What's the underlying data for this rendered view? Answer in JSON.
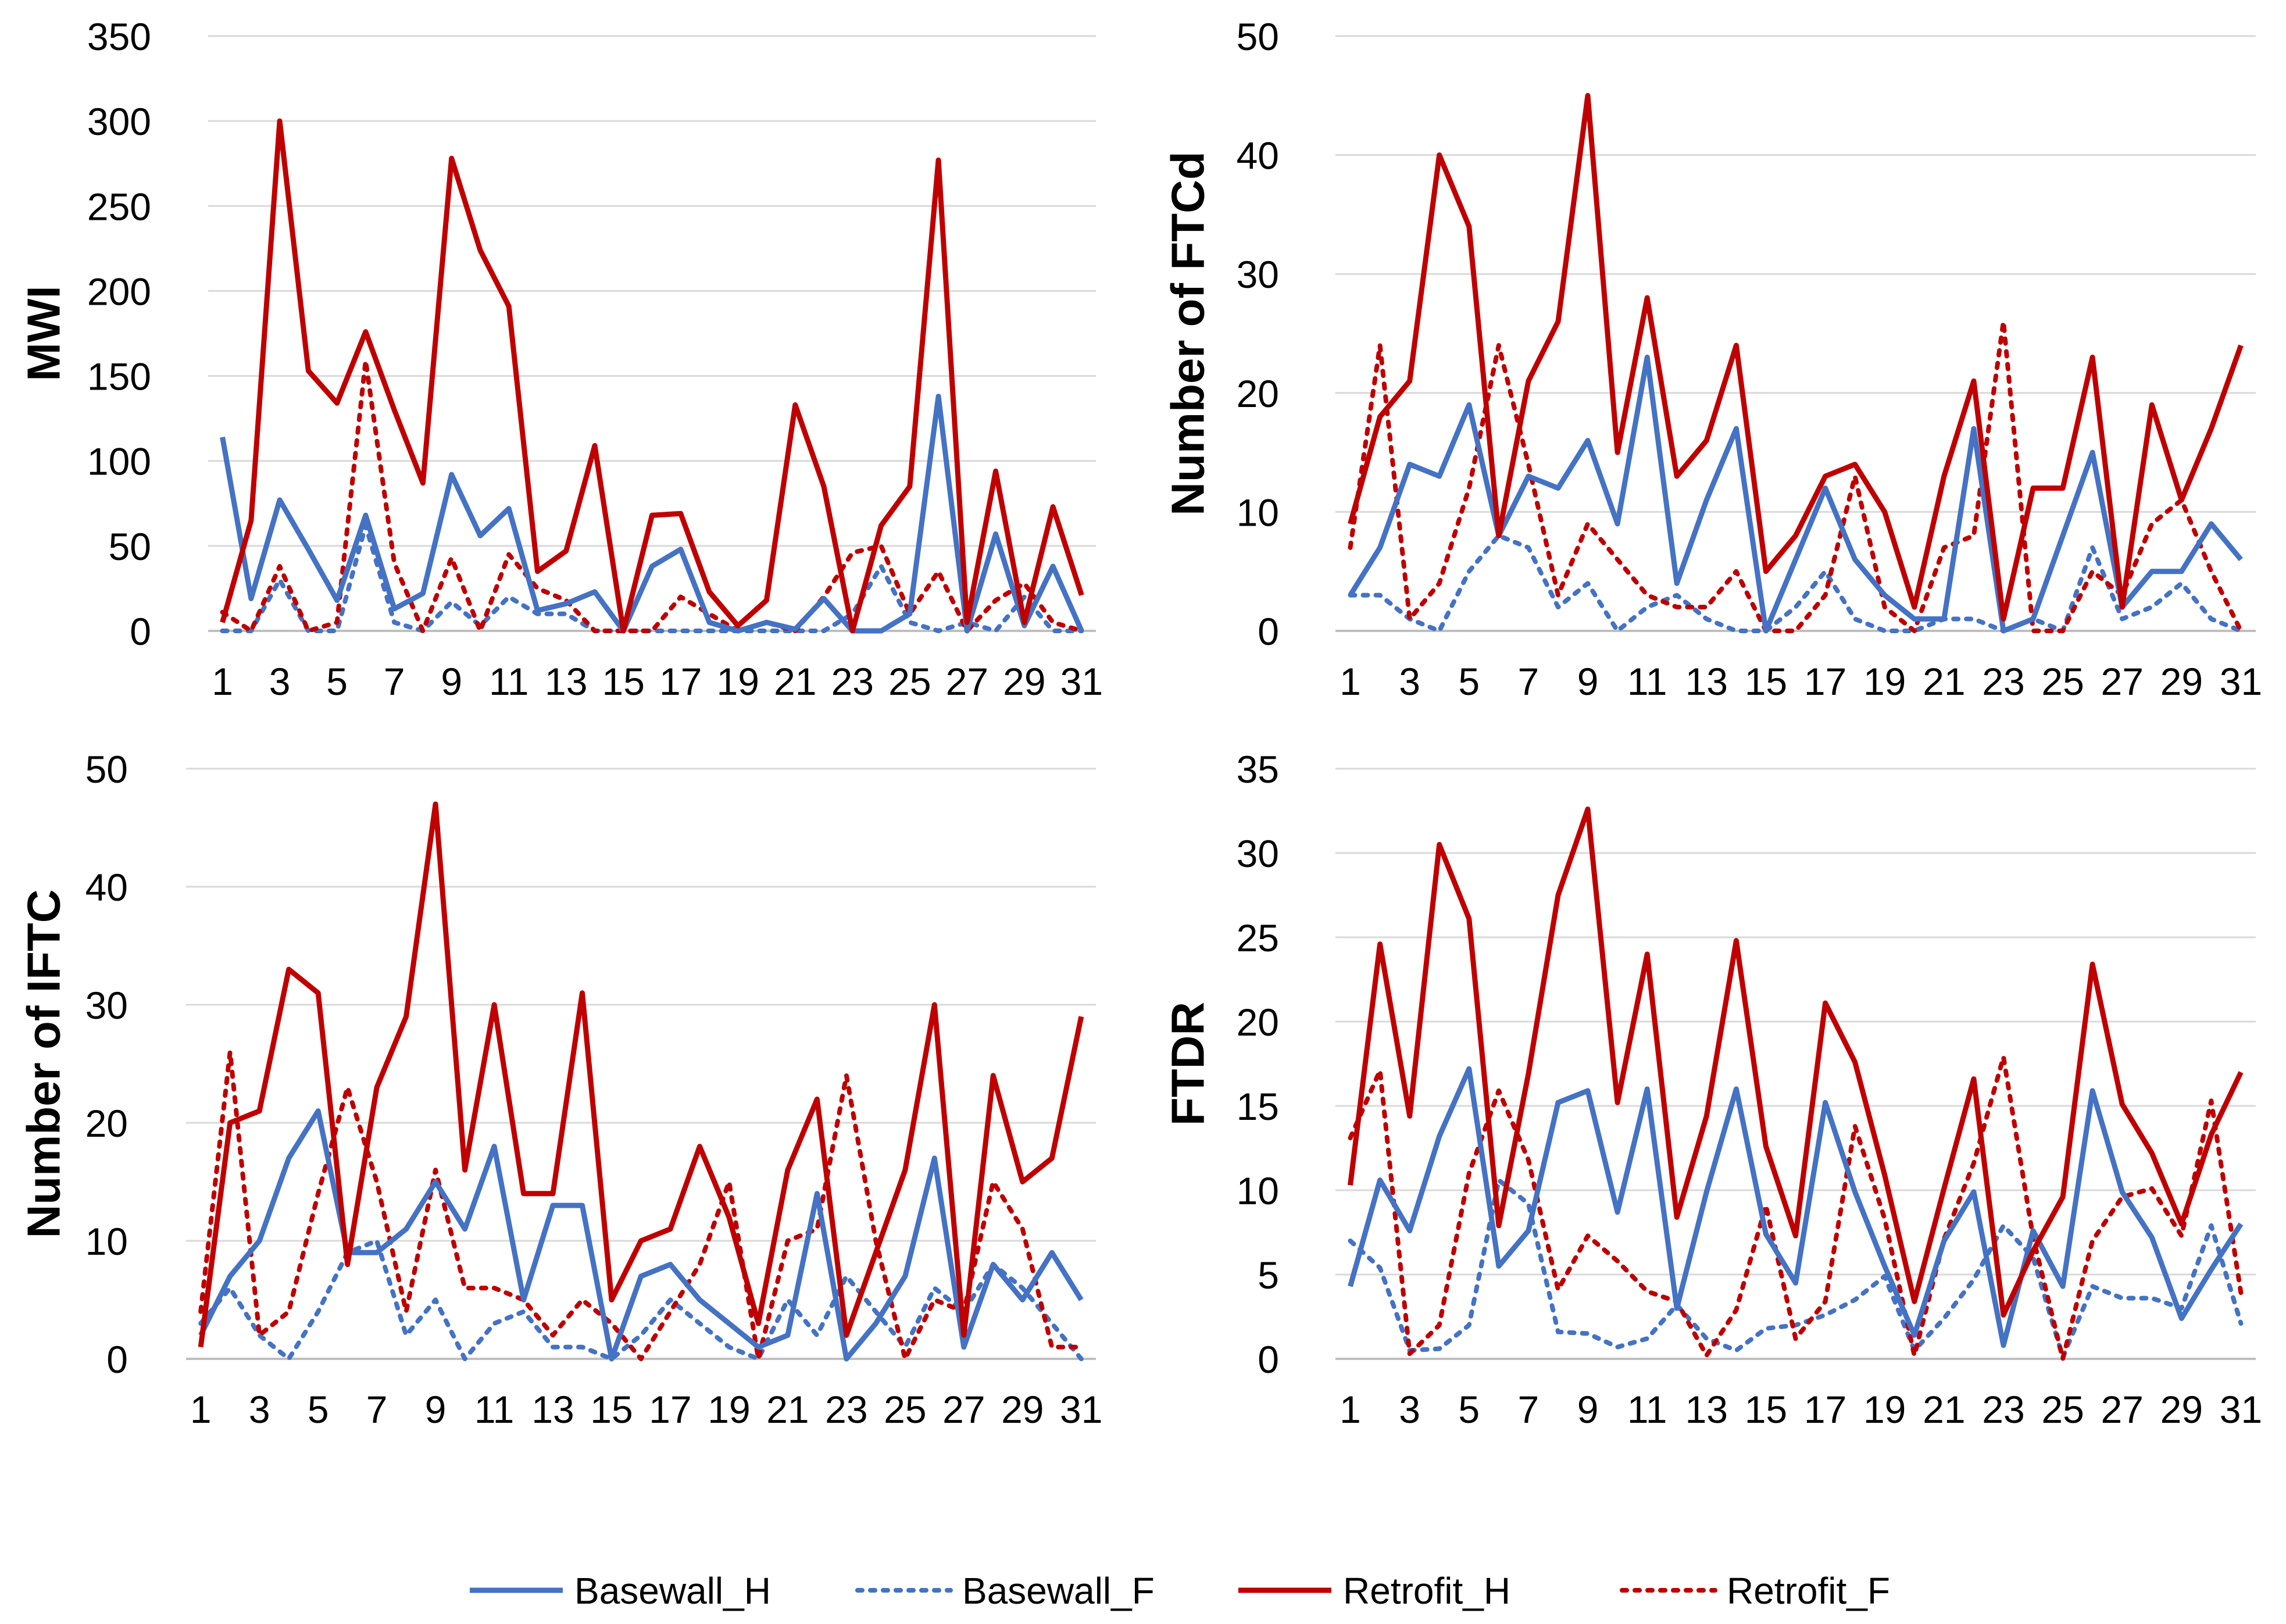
{
  "colors": {
    "basewall": "#4472C4",
    "retrofit": "#C00000",
    "grid": "#D9D9D9",
    "axis": "#BFBFBF",
    "text": "#000000"
  },
  "legend": [
    {
      "name": "Basewall_H",
      "color": "#4472C4",
      "style": "solid"
    },
    {
      "name": "Basewall_F",
      "color": "#4472C4",
      "style": "dotted"
    },
    {
      "name": "Retrofit_H",
      "color": "#C00000",
      "style": "solid"
    },
    {
      "name": "Retrofit_F",
      "color": "#C00000",
      "style": "dotted"
    }
  ],
  "chart_data": [
    {
      "type": "line",
      "ylabel": "MWI",
      "ylim": [
        0,
        350
      ],
      "yticks": [
        0,
        50,
        100,
        150,
        200,
        250,
        300,
        350
      ],
      "x": [
        1,
        2,
        3,
        4,
        5,
        6,
        7,
        8,
        9,
        10,
        11,
        12,
        13,
        14,
        15,
        16,
        17,
        18,
        19,
        20,
        21,
        22,
        23,
        24,
        25,
        26,
        27,
        28,
        29,
        30,
        31
      ],
      "xticklabels": [
        "1",
        "3",
        "5",
        "7",
        "9",
        "11",
        "13",
        "15",
        "17",
        "19",
        "21",
        "23",
        "25",
        "27",
        "29",
        "31"
      ],
      "series": [
        {
          "name": "Basewall_H",
          "values": [
            114,
            19,
            77,
            48,
            18,
            68,
            13,
            22,
            92,
            56,
            72,
            12,
            16,
            23,
            0,
            38,
            48,
            5,
            0,
            5,
            1,
            19,
            0,
            0,
            10,
            138,
            0,
            57,
            3,
            38,
            0
          ]
        },
        {
          "name": "Basewall_F",
          "values": [
            0,
            0,
            30,
            0,
            0,
            62,
            5,
            0,
            17,
            3,
            20,
            10,
            10,
            0,
            0,
            0,
            0,
            0,
            0,
            0,
            0,
            0,
            10,
            38,
            5,
            0,
            5,
            0,
            20,
            0,
            0
          ]
        },
        {
          "name": "Retrofit_H",
          "values": [
            5,
            65,
            300,
            153,
            134,
            176,
            130,
            87,
            278,
            224,
            191,
            35,
            47,
            109,
            0,
            68,
            69,
            23,
            3,
            18,
            133,
            85,
            0,
            62,
            85,
            277,
            5,
            94,
            5,
            73,
            21
          ]
        },
        {
          "name": "Retrofit_F",
          "values": [
            11,
            0,
            38,
            0,
            5,
            159,
            40,
            0,
            43,
            0,
            45,
            25,
            18,
            0,
            0,
            0,
            20,
            10,
            0,
            5,
            0,
            20,
            46,
            50,
            10,
            35,
            0,
            18,
            28,
            5,
            0
          ]
        }
      ]
    },
    {
      "type": "line",
      "ylabel": "Number of FTCd",
      "ylim": [
        0,
        50
      ],
      "yticks": [
        0,
        10,
        20,
        30,
        40,
        50
      ],
      "x": [
        1,
        2,
        3,
        4,
        5,
        6,
        7,
        8,
        9,
        10,
        11,
        12,
        13,
        14,
        15,
        16,
        17,
        18,
        19,
        20,
        21,
        22,
        23,
        24,
        25,
        26,
        27,
        28,
        29,
        30,
        31
      ],
      "xticklabels": [
        "1",
        "3",
        "5",
        "7",
        "9",
        "11",
        "13",
        "15",
        "17",
        "19",
        "21",
        "23",
        "25",
        "27",
        "29",
        "31"
      ],
      "series": [
        {
          "name": "Basewall_H",
          "values": [
            3,
            7,
            14,
            13,
            19,
            8,
            13,
            12,
            16,
            9,
            23,
            4,
            11,
            17,
            0,
            6,
            12,
            6,
            3,
            1,
            1,
            17,
            0,
            1,
            8,
            15,
            2,
            5,
            5,
            9,
            6
          ]
        },
        {
          "name": "Basewall_F",
          "values": [
            3,
            3,
            1,
            0,
            5,
            8,
            7,
            2,
            4,
            0,
            2,
            3,
            1,
            0,
            0,
            2,
            5,
            1,
            0,
            0,
            1,
            1,
            0,
            1,
            0,
            7,
            1,
            2,
            4,
            1,
            0
          ]
        },
        {
          "name": "Retrofit_H",
          "values": [
            9,
            18,
            21,
            40,
            34,
            8,
            21,
            26,
            45,
            15,
            28,
            13,
            16,
            24,
            5,
            8,
            13,
            14,
            10,
            2,
            13,
            21,
            1,
            12,
            12,
            23,
            2,
            19,
            11,
            17,
            24
          ]
        },
        {
          "name": "Retrofit_F",
          "values": [
            7,
            24,
            1,
            4,
            12,
            24,
            14,
            3,
            9,
            6,
            3,
            2,
            2,
            5,
            0,
            0,
            3,
            13,
            2,
            0,
            7,
            8,
            26,
            0,
            0,
            5,
            3,
            9,
            11,
            5,
            0
          ]
        }
      ]
    },
    {
      "type": "line",
      "ylabel": "Number of IFTC",
      "ylim": [
        0,
        50
      ],
      "yticks": [
        0,
        10,
        20,
        30,
        40,
        50
      ],
      "x": [
        1,
        2,
        3,
        4,
        5,
        6,
        7,
        8,
        9,
        10,
        11,
        12,
        13,
        14,
        15,
        16,
        17,
        18,
        19,
        20,
        21,
        22,
        23,
        24,
        25,
        26,
        27,
        28,
        29,
        30,
        31
      ],
      "xticklabels": [
        "1",
        "3",
        "5",
        "7",
        "9",
        "11",
        "13",
        "15",
        "17",
        "19",
        "21",
        "23",
        "25",
        "27",
        "29",
        "31"
      ],
      "series": [
        {
          "name": "Basewall_H",
          "values": [
            2,
            7,
            10,
            17,
            21,
            9,
            9,
            11,
            15,
            11,
            18,
            5,
            13,
            13,
            0,
            7,
            8,
            5,
            3,
            1,
            2,
            14,
            0,
            3,
            7,
            17,
            1,
            8,
            5,
            9,
            5
          ]
        },
        {
          "name": "Basewall_F",
          "values": [
            3,
            6,
            2,
            0,
            4,
            9,
            10,
            2,
            5,
            0,
            3,
            4,
            1,
            1,
            0,
            2,
            5,
            3,
            1,
            0,
            5,
            2,
            7,
            4,
            1,
            6,
            4,
            8,
            6,
            3,
            0
          ]
        },
        {
          "name": "Retrofit_H",
          "values": [
            1,
            20,
            21,
            33,
            31,
            8,
            23,
            29,
            47,
            16,
            30,
            14,
            14,
            31,
            5,
            10,
            11,
            18,
            12,
            3,
            16,
            22,
            2,
            9,
            16,
            30,
            2,
            24,
            15,
            17,
            29
          ]
        },
        {
          "name": "Retrofit_F",
          "values": [
            4,
            26,
            2,
            4,
            14,
            23,
            15,
            4,
            16,
            6,
            6,
            5,
            2,
            5,
            3,
            0,
            4,
            8,
            15,
            0,
            10,
            11,
            24,
            10,
            0,
            5,
            4,
            15,
            11,
            1,
            1
          ]
        }
      ]
    },
    {
      "type": "line",
      "ylabel": "FTDR",
      "ylim": [
        0,
        35
      ],
      "yticks": [
        0,
        5,
        10,
        15,
        20,
        25,
        30,
        35
      ],
      "x": [
        1,
        2,
        3,
        4,
        5,
        6,
        7,
        8,
        9,
        10,
        11,
        12,
        13,
        14,
        15,
        16,
        17,
        18,
        19,
        20,
        21,
        22,
        23,
        24,
        25,
        26,
        27,
        28,
        29,
        30,
        31
      ],
      "xticklabels": [
        "1",
        "3",
        "5",
        "7",
        "9",
        "11",
        "13",
        "15",
        "17",
        "19",
        "21",
        "23",
        "25",
        "27",
        "29",
        "31"
      ],
      "series": [
        {
          "name": "Basewall_H",
          "values": [
            4.3,
            10.6,
            7.6,
            13.2,
            17.2,
            5.5,
            7.6,
            15.2,
            15.9,
            8.7,
            16.0,
            3.0,
            9.9,
            16.0,
            7.4,
            4.5,
            15.2,
            9.9,
            5.5,
            1.4,
            7.0,
            9.9,
            0.8,
            7.6,
            4.3,
            15.9,
            9.9,
            7.2,
            2.4,
            5.3,
            8.0
          ]
        },
        {
          "name": "Basewall_F",
          "values": [
            7.0,
            5.4,
            0.5,
            0.6,
            2.0,
            10.6,
            9.2,
            1.6,
            1.5,
            0.7,
            1.2,
            3.2,
            1.2,
            0.5,
            1.8,
            2.0,
            2.6,
            3.5,
            4.9,
            0.5,
            2.4,
            4.7,
            7.9,
            6.0,
            0.1,
            4.3,
            3.6,
            3.6,
            3.0,
            7.9,
            2.1
          ]
        },
        {
          "name": "Retrofit_H",
          "values": [
            10.3,
            24.6,
            14.4,
            30.5,
            26.1,
            7.9,
            16.9,
            27.5,
            32.6,
            15.2,
            24.0,
            8.4,
            14.4,
            24.8,
            12.6,
            7.3,
            21.1,
            17.6,
            10.9,
            3.4,
            10.1,
            16.6,
            2.6,
            6.4,
            9.6,
            23.4,
            15.1,
            12.2,
            8.0,
            13.3,
            17.0
          ]
        },
        {
          "name": "Retrofit_F",
          "values": [
            13.1,
            17.1,
            0.3,
            2.0,
            11.0,
            15.9,
            11.8,
            4.1,
            7.3,
            5.8,
            4.0,
            3.4,
            0.2,
            2.9,
            9.1,
            1.2,
            3.4,
            13.8,
            8.3,
            0.2,
            7.1,
            11.6,
            17.9,
            7.2,
            0.0,
            7.0,
            9.6,
            10.1,
            7.3,
            15.3,
            3.9
          ]
        }
      ]
    }
  ]
}
